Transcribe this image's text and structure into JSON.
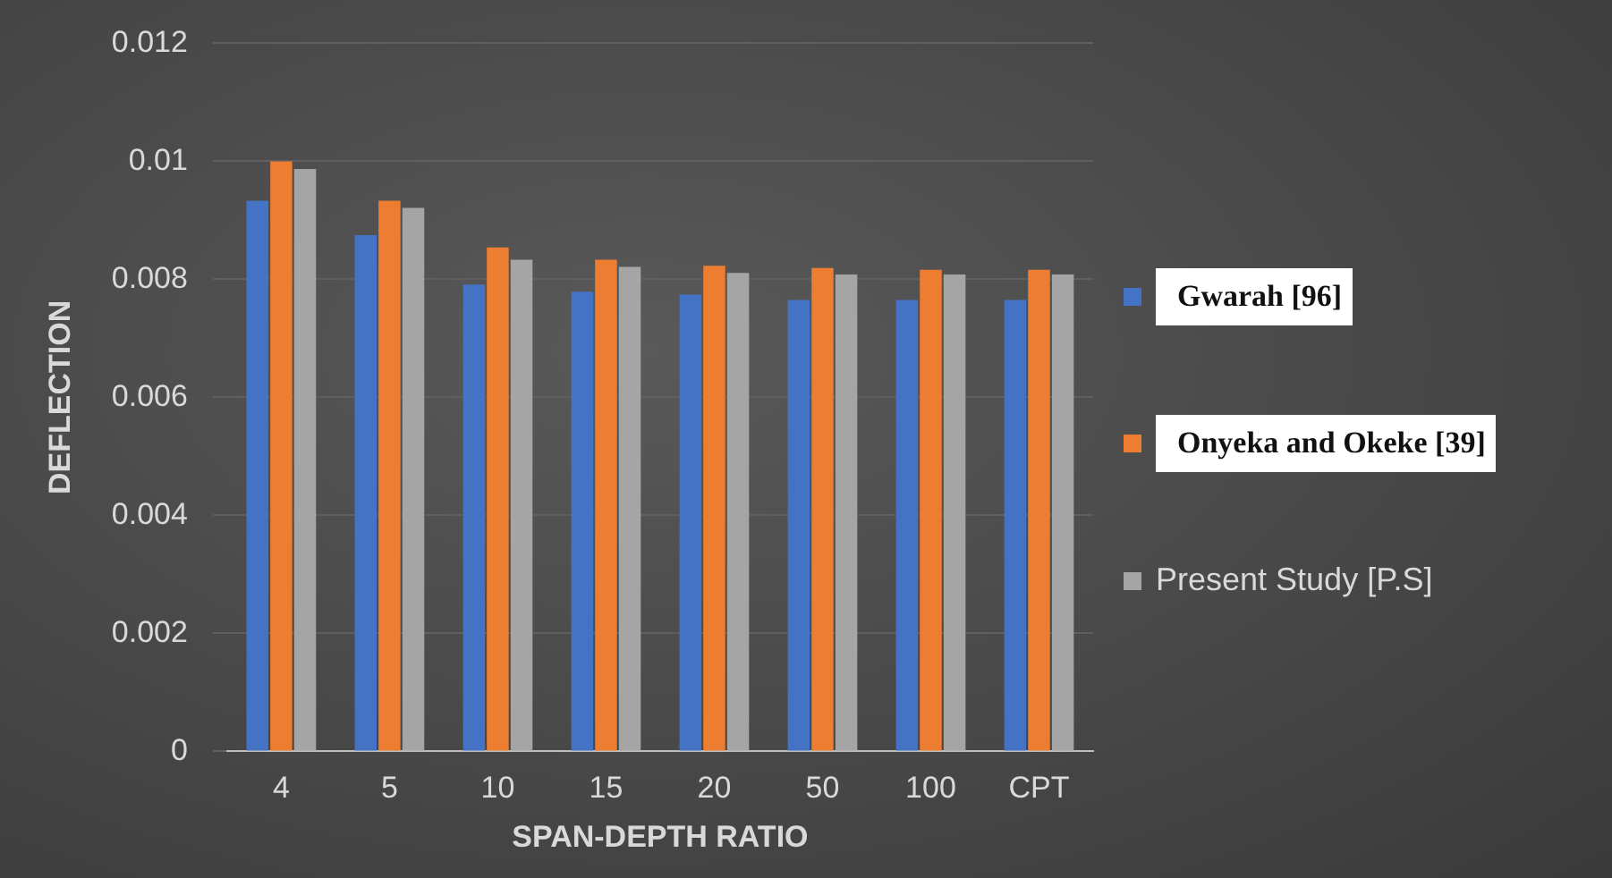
{
  "chart_data": {
    "type": "bar",
    "xlabel": "SPAN-DEPTH RATIO",
    "ylabel": "DEFLECTION",
    "categories": [
      "4",
      "5",
      "10",
      "15",
      "20",
      "50",
      "100",
      "CPT"
    ],
    "series": [
      {
        "name": "Gwarah [96]",
        "color": "#4472c4",
        "values": [
          0.00933,
          0.00875,
          0.00791,
          0.00779,
          0.00774,
          0.00765,
          0.00765,
          0.00765
        ]
      },
      {
        "name": "Onyeka and Okeke [39]",
        "color": "#ed7d31",
        "values": [
          0.01,
          0.00933,
          0.00854,
          0.00833,
          0.00823,
          0.00819,
          0.00816,
          0.00816
        ]
      },
      {
        "name": "Present Study [P.S]",
        "color": "#a5a5a5",
        "values": [
          0.00987,
          0.00921,
          0.00833,
          0.00821,
          0.00811,
          0.00808,
          0.00808,
          0.00808
        ]
      }
    ],
    "ylim": [
      0,
      0.012
    ],
    "yticks": [
      0,
      0.002,
      0.004,
      0.006,
      0.008,
      0.01,
      0.012
    ],
    "grid": "y",
    "legend": "right"
  }
}
